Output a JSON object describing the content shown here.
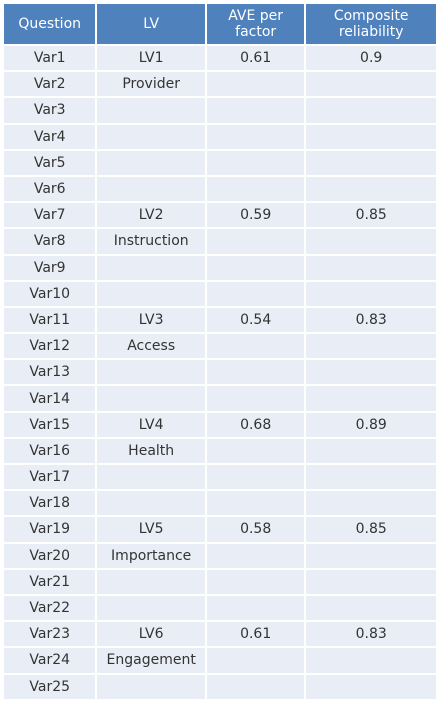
{
  "table": {
    "headers": [
      {
        "label": "Question"
      },
      {
        "label": "LV"
      },
      {
        "line1": "AVE per",
        "line2": "factor"
      },
      {
        "line1": "Composite",
        "line2": "reliability"
      }
    ],
    "rows": [
      {
        "question": "Var1",
        "lv": "LV1",
        "ave": "0.61",
        "cr": "0.9"
      },
      {
        "question": "Var2",
        "lv": "Provider",
        "ave": "",
        "cr": ""
      },
      {
        "question": "Var3",
        "lv": "",
        "ave": "",
        "cr": ""
      },
      {
        "question": "Var4",
        "lv": "",
        "ave": "",
        "cr": ""
      },
      {
        "question": "Var5",
        "lv": "",
        "ave": "",
        "cr": ""
      },
      {
        "question": "Var6",
        "lv": "",
        "ave": "",
        "cr": ""
      },
      {
        "question": "Var7",
        "lv": "LV2",
        "ave": "0.59",
        "cr": "0.85"
      },
      {
        "question": "Var8",
        "lv": "Instruction",
        "ave": "",
        "cr": ""
      },
      {
        "question": "Var9",
        "lv": "",
        "ave": "",
        "cr": ""
      },
      {
        "question": "Var10",
        "lv": "",
        "ave": "",
        "cr": ""
      },
      {
        "question": "Var11",
        "lv": "LV3",
        "ave": "0.54",
        "cr": "0.83"
      },
      {
        "question": "Var12",
        "lv": "Access",
        "ave": "",
        "cr": ""
      },
      {
        "question": "Var13",
        "lv": "",
        "ave": "",
        "cr": ""
      },
      {
        "question": "Var14",
        "lv": "",
        "ave": "",
        "cr": ""
      },
      {
        "question": "Var15",
        "lv": "LV4",
        "ave": "0.68",
        "cr": "0.89"
      },
      {
        "question": "Var16",
        "lv": "Health",
        "ave": "",
        "cr": ""
      },
      {
        "question": "Var17",
        "lv": "",
        "ave": "",
        "cr": ""
      },
      {
        "question": "Var18",
        "lv": "",
        "ave": "",
        "cr": ""
      },
      {
        "question": "Var19",
        "lv": "LV5",
        "ave": "0.58",
        "cr": "0.85"
      },
      {
        "question": "Var20",
        "lv": "Importance",
        "ave": "",
        "cr": ""
      },
      {
        "question": "Var21",
        "lv": "",
        "ave": "",
        "cr": ""
      },
      {
        "question": "Var22",
        "lv": "",
        "ave": "",
        "cr": ""
      },
      {
        "question": "Var23",
        "lv": "LV6",
        "ave": "0.61",
        "cr": "0.83"
      },
      {
        "question": "Var24",
        "lv": "Engagement",
        "ave": "",
        "cr": ""
      },
      {
        "question": "Var25",
        "lv": "",
        "ave": "",
        "cr": ""
      }
    ]
  },
  "colors": {
    "header_bg": "#4f81bd",
    "cell_bg": "#e9eef6",
    "text": "#333333"
  }
}
